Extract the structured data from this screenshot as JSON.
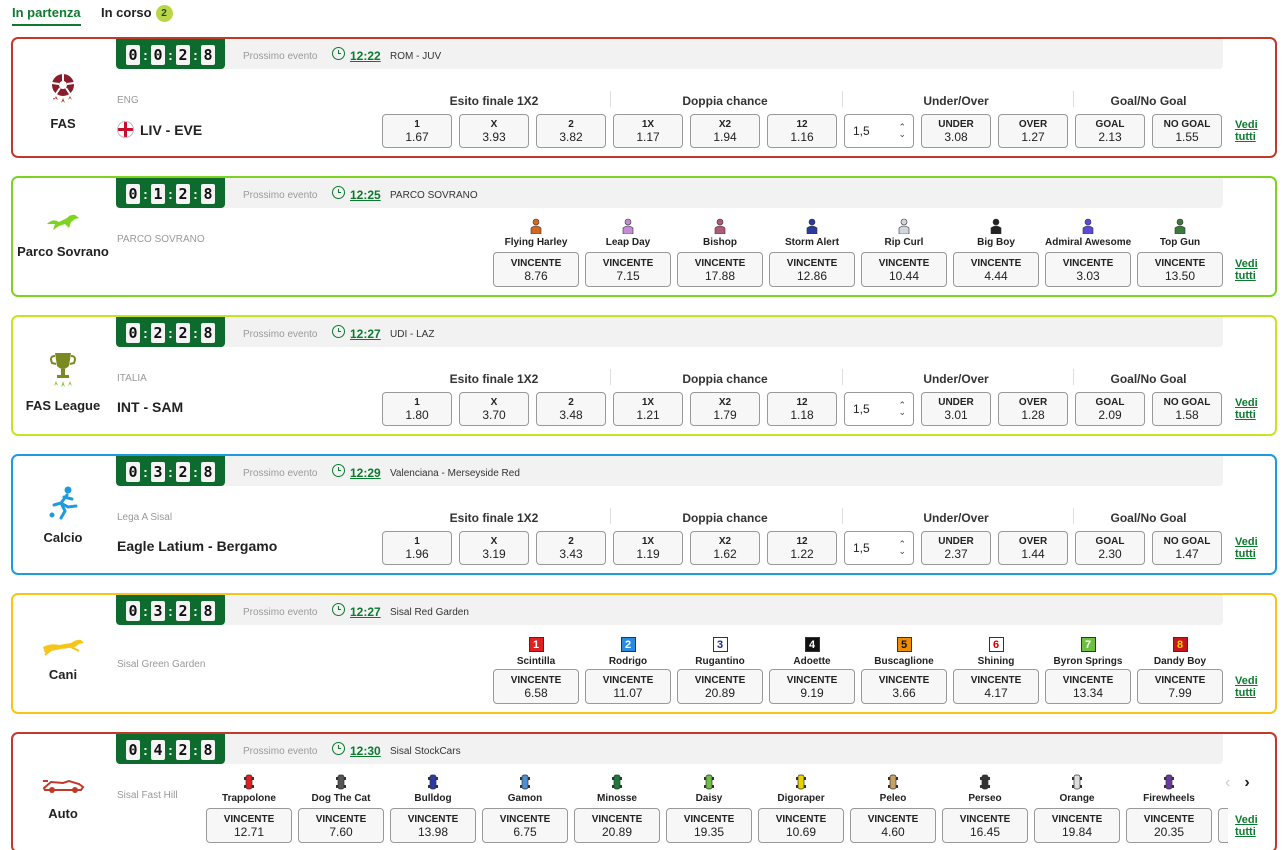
{
  "tabs": {
    "upcoming": "In partenza",
    "live": "In corso",
    "live_count": "2"
  },
  "common": {
    "prossimo": "Prossimo evento",
    "vedi": "Vedi tutti",
    "groups": [
      "Esito finale 1X2",
      "Doppia chance",
      "Under/Over",
      "Goal/No Goal"
    ],
    "vincente": "VINCENTE"
  },
  "cards": [
    {
      "border": "#c0392b",
      "digits": [
        "0",
        "0",
        "2",
        "8"
      ],
      "sport": "FAS",
      "icon": "soccer-ball-icon",
      "next_time": "12:22",
      "next_event": "ROM - JUV",
      "league": "ENG",
      "match": "LIV - EVE",
      "threshold": "1,5",
      "odds": [
        {
          "label": "1",
          "value": "1.67"
        },
        {
          "label": "X",
          "value": "3.93"
        },
        {
          "label": "2",
          "value": "3.82"
        },
        {
          "label": "1X",
          "value": "1.17"
        },
        {
          "label": "X2",
          "value": "1.94"
        },
        {
          "label": "12",
          "value": "1.16"
        },
        {
          "label": "UNDER",
          "value": "3.08"
        },
        {
          "label": "OVER",
          "value": "1.27"
        },
        {
          "label": "GOAL",
          "value": "2.13"
        },
        {
          "label": "NO GOAL",
          "value": "1.55"
        }
      ]
    },
    {
      "border": "#7ed321",
      "digits": [
        "0",
        "1",
        "2",
        "8"
      ],
      "sport": "Parco Sovrano",
      "icon": "horse-icon",
      "next_time": "12:25",
      "next_event": "PARCO SOVRANO",
      "league": "PARCO SOVRANO",
      "runners": [
        {
          "name": "Flying Harley",
          "value": "8.76",
          "color": "#d2691e"
        },
        {
          "name": "Leap Day",
          "value": "7.15",
          "color": "#c58bd6"
        },
        {
          "name": "Bishop",
          "value": "17.88",
          "color": "#b05a7a"
        },
        {
          "name": "Storm Alert",
          "value": "12.86",
          "color": "#2a3aa0"
        },
        {
          "name": "Rip Curl",
          "value": "10.44",
          "color": "#d0d6dc"
        },
        {
          "name": "Big Boy",
          "value": "4.44",
          "color": "#222222"
        },
        {
          "name": "Admiral Awesome",
          "value": "3.03",
          "color": "#5a4ad6"
        },
        {
          "name": "Top Gun",
          "value": "13.50",
          "color": "#3a7a3a"
        }
      ]
    },
    {
      "border": "#c6e51f",
      "digits": [
        "0",
        "2",
        "2",
        "8"
      ],
      "sport": "FAS League",
      "icon": "trophy-icon",
      "next_time": "12:27",
      "next_event": "UDI - LAZ",
      "league": "ITALIA",
      "match": "INT - SAM",
      "threshold": "1,5",
      "odds": [
        {
          "label": "1",
          "value": "1.80"
        },
        {
          "label": "X",
          "value": "3.70"
        },
        {
          "label": "2",
          "value": "3.48"
        },
        {
          "label": "1X",
          "value": "1.21"
        },
        {
          "label": "X2",
          "value": "1.79"
        },
        {
          "label": "12",
          "value": "1.18"
        },
        {
          "label": "UNDER",
          "value": "3.01"
        },
        {
          "label": "OVER",
          "value": "1.28"
        },
        {
          "label": "GOAL",
          "value": "2.09"
        },
        {
          "label": "NO GOAL",
          "value": "1.58"
        }
      ]
    },
    {
      "border": "#1e9be0",
      "digits": [
        "0",
        "3",
        "2",
        "8"
      ],
      "sport": "Calcio",
      "icon": "player-kicking-icon",
      "next_time": "12:29",
      "next_event": "Valenciana - Merseyside Red",
      "league": "Lega A Sisal",
      "match": "Eagle Latium - Bergamo",
      "threshold": "1,5",
      "odds": [
        {
          "label": "1",
          "value": "1.96"
        },
        {
          "label": "X",
          "value": "3.19"
        },
        {
          "label": "2",
          "value": "3.43"
        },
        {
          "label": "1X",
          "value": "1.19"
        },
        {
          "label": "X2",
          "value": "1.62"
        },
        {
          "label": "12",
          "value": "1.22"
        },
        {
          "label": "UNDER",
          "value": "2.37"
        },
        {
          "label": "OVER",
          "value": "1.44"
        },
        {
          "label": "GOAL",
          "value": "2.30"
        },
        {
          "label": "NO GOAL",
          "value": "1.47"
        }
      ]
    },
    {
      "border": "#f5c518",
      "digits": [
        "0",
        "3",
        "2",
        "8"
      ],
      "sport": "Cani",
      "icon": "greyhound-icon",
      "next_time": "12:27",
      "next_event": "Sisal Red Garden",
      "league": "Sisal Green Garden",
      "runners": [
        {
          "name": "Scintilla",
          "value": "6.58",
          "num": "1",
          "bg": "#e02020",
          "fg": "#ffffff"
        },
        {
          "name": "Rodrigo",
          "value": "11.07",
          "num": "2",
          "bg": "#2a8be0",
          "fg": "#ffffff"
        },
        {
          "name": "Rugantino",
          "value": "20.89",
          "num": "3",
          "bg": "#ffffff",
          "fg": "#1a2a8a"
        },
        {
          "name": "Adoette",
          "value": "9.19",
          "num": "4",
          "bg": "#111111",
          "fg": "#ffffff"
        },
        {
          "name": "Buscaglione",
          "value": "3.66",
          "num": "5",
          "bg": "#f08c00",
          "fg": "#111111"
        },
        {
          "name": "Shining",
          "value": "4.17",
          "num": "6",
          "bg": "#ffffff",
          "fg": "#cc0000"
        },
        {
          "name": "Byron Springs",
          "value": "13.34",
          "num": "7",
          "bg": "#6cbf40",
          "fg": "#ffffff"
        },
        {
          "name": "Dandy Boy",
          "value": "7.99",
          "num": "8",
          "bg": "#c4161c",
          "fg": "#f7d000"
        }
      ]
    },
    {
      "border": "#c0392b",
      "digits": [
        "0",
        "4",
        "2",
        "8"
      ],
      "sport": "Auto",
      "icon": "race-car-icon",
      "next_time": "12:30",
      "next_event": "Sisal StockCars",
      "league": "Sisal Fast Hill",
      "runners": [
        {
          "name": "Trappolone",
          "value": "12.71",
          "color": "#e02020"
        },
        {
          "name": "Dog The Cat",
          "value": "7.60",
          "color": "#555555"
        },
        {
          "name": "Bulldog",
          "value": "13.98",
          "color": "#2a3aa0"
        },
        {
          "name": "Gamon",
          "value": "6.75",
          "color": "#4a8fd6"
        },
        {
          "name": "Minosse",
          "value": "20.89",
          "color": "#1e7a3a"
        },
        {
          "name": "Daisy",
          "value": "19.35",
          "color": "#6cbf40"
        },
        {
          "name": "Digoraper",
          "value": "10.69",
          "color": "#e6d200"
        },
        {
          "name": "Peleo",
          "value": "4.60",
          "color": "#c8a060"
        },
        {
          "name": "Perseo",
          "value": "16.45",
          "color": "#333333"
        },
        {
          "name": "Orange",
          "value": "19.84",
          "color": "#dddddd"
        },
        {
          "name": "Firewheels",
          "value": "20.35",
          "color": "#6a3a9a"
        }
      ]
    }
  ]
}
